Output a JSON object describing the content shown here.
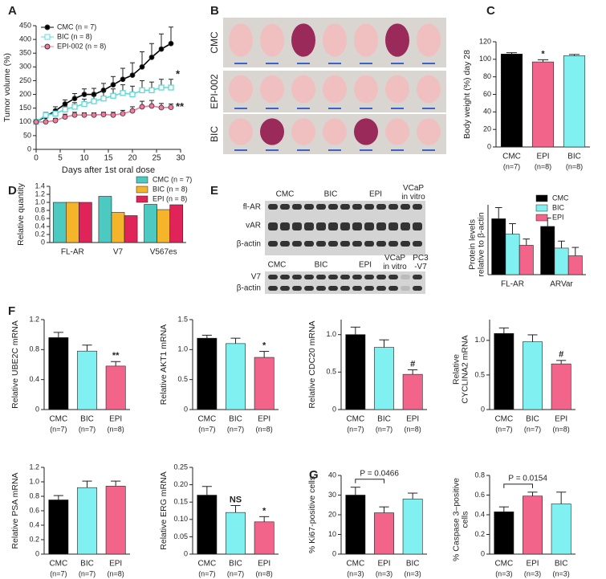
{
  "panel_labels": [
    "A",
    "B",
    "C",
    "D",
    "E",
    "F",
    "G"
  ],
  "photos": {
    "rows": [
      "CMC",
      "EPI-002",
      "BIC"
    ]
  },
  "blots": {
    "top_lanes": [
      "CMC",
      "BIC",
      "EPI",
      [
        "VCaP",
        "in vitro"
      ]
    ],
    "top_rows": [
      "fl-AR",
      "vAR",
      "β-actin"
    ],
    "bottom_lanes": [
      "CMC",
      "BIC",
      "EPI",
      [
        "VCaP",
        "in vitro"
      ],
      [
        "PC3",
        "-V7"
      ]
    ],
    "bottom_rows": [
      "V7",
      "β-actin"
    ]
  },
  "chart_data": [
    {
      "type": "line",
      "xlabel": "Days after 1st oral dose",
      "ylabel": "Tumor volume (%)",
      "x": [
        0,
        2,
        4,
        6,
        8,
        10,
        12,
        14,
        16,
        18,
        20,
        22,
        24,
        26,
        28
      ],
      "xlim": [
        0,
        30
      ],
      "xticks": [
        0,
        5,
        10,
        15,
        20,
        25,
        30
      ],
      "ylim": [
        0,
        450
      ],
      "yticks": [
        0,
        50,
        100,
        150,
        200,
        250,
        300,
        350,
        400,
        450
      ],
      "legend": "upper left",
      "series": [
        {
          "name": "CMC (n = 7)",
          "color": "#000000",
          "marker": "circle",
          "values": [
            100,
            120,
            140,
            165,
            185,
            200,
            200,
            215,
            235,
            255,
            270,
            300,
            335,
            365,
            385
          ],
          "errors": [
            3,
            10,
            15,
            15,
            18,
            20,
            22,
            25,
            30,
            40,
            45,
            55,
            50,
            55,
            60
          ]
        },
        {
          "name": "BIC (n = 8)",
          "color": "#5fd8d8",
          "marker": "square",
          "values": [
            100,
            125,
            130,
            145,
            155,
            165,
            175,
            185,
            195,
            205,
            200,
            215,
            215,
            225,
            225
          ],
          "errors": [
            3,
            10,
            12,
            12,
            15,
            18,
            20,
            25,
            25,
            30,
            30,
            35,
            30,
            30,
            30
          ],
          "sig": "*"
        },
        {
          "name": "EPI-002 (n = 8)",
          "color": "#f27a9c",
          "marker": "circle",
          "values": [
            100,
            100,
            105,
            118,
            125,
            125,
            125,
            127,
            125,
            130,
            140,
            155,
            158,
            152,
            153
          ],
          "errors": [
            3,
            5,
            8,
            10,
            10,
            8,
            8,
            8,
            10,
            12,
            15,
            20,
            20,
            15,
            12
          ],
          "sig": "**"
        }
      ]
    },
    {
      "type": "bar",
      "ylabel": "Body weight (%) day 28",
      "categories": [
        "CMC",
        "EPI",
        "BIC"
      ],
      "sublabels": [
        "(n=7)",
        "(n=8)",
        "(n=8)"
      ],
      "values": [
        106,
        97,
        104
      ],
      "errors": [
        1.5,
        2.5,
        1.5
      ],
      "colors": [
        "#000000",
        "#f2648a",
        "#80f0f0"
      ],
      "sig": [
        null,
        "*",
        null
      ],
      "ylim": [
        0,
        120
      ],
      "yticks": [
        0,
        20,
        40,
        60,
        80,
        100,
        120
      ]
    },
    {
      "type": "bar",
      "ylabel": "Relative quantity",
      "categories": [
        "FL-AR",
        "V7",
        "V567es"
      ],
      "ylim": [
        0,
        1.4
      ],
      "yticks": [
        0,
        0.2,
        0.4,
        0.6,
        0.8,
        {
          "value": 1,
          "label": "1.0"
        },
        1.2,
        1.4
      ],
      "legend": "upper right",
      "series": [
        {
          "name": "CMC (n = 7)",
          "color": "#4cc9c0",
          "values": [
            1.0,
            1.15,
            0.95
          ]
        },
        {
          "name": "BIC (n = 8)",
          "color": "#f5b52b",
          "values": [
            1.0,
            0.75,
            0.82
          ]
        },
        {
          "name": "EPI (n = 8)",
          "color": "#e0245a",
          "values": [
            1.0,
            0.67,
            0.94
          ]
        }
      ]
    },
    {
      "type": "bar",
      "ylabel": [
        "Protein levels",
        "relative to β-actin"
      ],
      "categories": [
        "FL-AR",
        "ARVar"
      ],
      "ylim": [
        0,
        10
      ],
      "legend": "upper right",
      "series": [
        {
          "name": "CMC",
          "color": "#000000",
          "values": [
            8.0,
            6.9
          ],
          "errors": [
            1.6,
            1.2
          ]
        },
        {
          "name": "BIC",
          "color": "#80f0f0",
          "values": [
            5.8,
            3.8
          ],
          "errors": [
            1.5,
            1.0
          ]
        },
        {
          "name": "EPI",
          "color": "#f2648a",
          "values": [
            4.2,
            2.7
          ],
          "errors": [
            0.9,
            1.2
          ]
        }
      ]
    },
    {
      "type": "bar",
      "ylabel": "Relative UBE2C mRNA",
      "categories": [
        "CMC",
        "BIC",
        "EPI"
      ],
      "sublabels": [
        "(n=7)",
        "(n=7)",
        "(n=8)"
      ],
      "values": [
        0.96,
        0.78,
        0.58
      ],
      "errors": [
        0.07,
        0.08,
        0.06
      ],
      "colors": [
        "#000000",
        "#80f0f0",
        "#f2648a"
      ],
      "sig": [
        null,
        null,
        "**"
      ],
      "ylim": [
        0,
        1.2
      ],
      "yticks": [
        0,
        0.4,
        0.8,
        1.2
      ]
    },
    {
      "type": "bar",
      "ylabel": "Relative AKT1 mRNA",
      "categories": [
        "CMC",
        "BIC",
        "EPI"
      ],
      "sublabels": [
        "(n=7)",
        "(n=7)",
        "(n=8)"
      ],
      "values": [
        1.19,
        1.1,
        0.87
      ],
      "errors": [
        0.05,
        0.09,
        0.1
      ],
      "colors": [
        "#000000",
        "#80f0f0",
        "#f2648a"
      ],
      "sig": [
        null,
        null,
        "*"
      ],
      "ylim": [
        0,
        1.5
      ],
      "yticks": [
        0,
        0.5,
        {
          "value": 1,
          "label": "1.0"
        },
        1.5
      ]
    },
    {
      "type": "bar",
      "ylabel": "Relative CDC20 mRNA",
      "categories": [
        "CMC",
        "BIC",
        "EPI"
      ],
      "sublabels": [
        "(n=7)",
        "(n=7)",
        "(n=8)"
      ],
      "values": [
        1.0,
        0.83,
        0.47
      ],
      "errors": [
        0.1,
        0.1,
        0.06
      ],
      "colors": [
        "#000000",
        "#80f0f0",
        "#f2648a"
      ],
      "sig": [
        null,
        null,
        "#"
      ],
      "ylim": [
        0,
        1.2
      ],
      "yticks": [
        0,
        0.5,
        {
          "value": 1,
          "label": "1.0"
        }
      ]
    },
    {
      "type": "bar",
      "ylabel": [
        "Relative",
        "CYCLINA2 mRNA"
      ],
      "categories": [
        "CMC",
        "BIC",
        "EPI"
      ],
      "sublabels": [
        "(n=7)",
        "(n=7)",
        "(n=8)"
      ],
      "values": [
        1.1,
        0.98,
        0.66
      ],
      "errors": [
        0.08,
        0.1,
        0.05
      ],
      "colors": [
        "#000000",
        "#80f0f0",
        "#f2648a"
      ],
      "sig": [
        null,
        null,
        "#"
      ],
      "ylim": [
        0,
        1.3
      ],
      "yticks": [
        0,
        0.5,
        {
          "value": 1,
          "label": "1.0"
        }
      ]
    },
    {
      "type": "bar",
      "ylabel": "Relative PSA mRNA",
      "categories": [
        "CMC",
        "BIC",
        "EPI"
      ],
      "sublabels": [
        "(n=7)",
        "(n=7)",
        "(n=8)"
      ],
      "values": [
        0.75,
        0.92,
        0.94
      ],
      "errors": [
        0.06,
        0.09,
        0.07
      ],
      "colors": [
        "#000000",
        "#80f0f0",
        "#f2648a"
      ],
      "ylim": [
        0,
        1.2
      ],
      "yticks": [
        0,
        0.2,
        0.4,
        0.6,
        0.8,
        {
          "value": 1,
          "label": "1.0"
        },
        1.2
      ]
    },
    {
      "type": "bar",
      "ylabel": "Relative ERG mRNA",
      "categories": [
        "CMC",
        "BIC",
        "EPI"
      ],
      "sublabels": [
        "(n=7)",
        "(n=7)",
        "(n=8)"
      ],
      "values": [
        0.17,
        0.12,
        0.093
      ],
      "errors": [
        0.025,
        0.02,
        0.015
      ],
      "colors": [
        "#000000",
        "#80f0f0",
        "#f2648a"
      ],
      "sig": [
        null,
        "NS",
        "*"
      ],
      "ylim": [
        0,
        0.25
      ],
      "yticks": [
        0,
        0.05,
        {
          "value": 0.1,
          "label": "0.10"
        },
        0.15,
        {
          "value": 0.2,
          "label": "0.20"
        },
        0.25
      ]
    },
    {
      "type": "bar",
      "ylabel": "% Ki67-positive cells",
      "categories": [
        "CMC",
        "EPI",
        "BIC"
      ],
      "sublabels": [
        "(n=3)",
        "(n=3)",
        "(n=3)"
      ],
      "values": [
        30,
        21,
        28
      ],
      "errors": [
        4,
        3,
        3
      ],
      "colors": [
        "#000000",
        "#f2648a",
        "#80f0f0"
      ],
      "p_value": "P = 0.0466",
      "ylim": [
        0,
        40
      ],
      "yticks": [
        0,
        10,
        20,
        30,
        40
      ]
    },
    {
      "type": "bar",
      "ylabel": [
        "% Caspase 3–positive",
        "cells"
      ],
      "categories": [
        "CMC",
        "EPI",
        "BIC"
      ],
      "sublabels": [
        "(n=3)",
        "(n=3)",
        "(n=3)"
      ],
      "values": [
        0.43,
        0.59,
        0.51
      ],
      "errors": [
        0.05,
        0.04,
        0.12
      ],
      "colors": [
        "#000000",
        "#f2648a",
        "#80f0f0"
      ],
      "p_value": "P = 0.0154",
      "ylim": [
        0,
        0.8
      ],
      "yticks": [
        0,
        0.2,
        0.4,
        0.6,
        0.8
      ]
    }
  ]
}
